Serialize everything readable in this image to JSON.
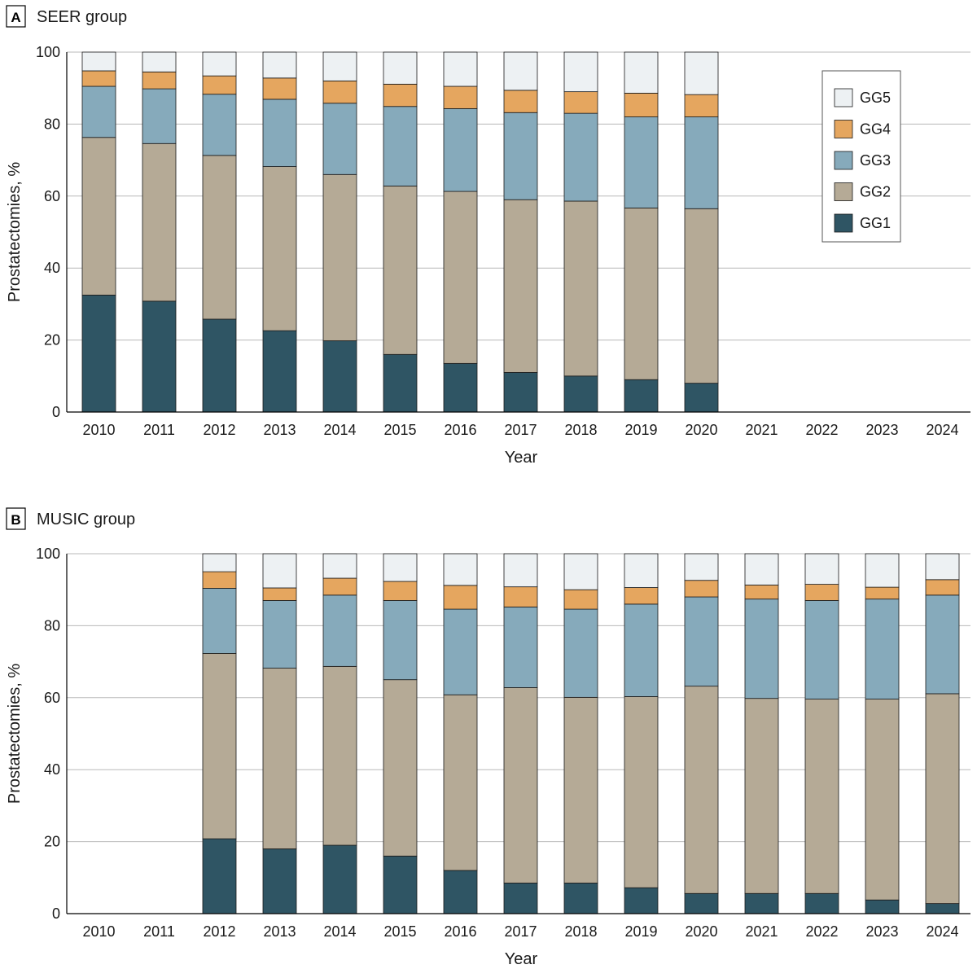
{
  "chart_data": [
    {
      "type": "bar",
      "stacked": true,
      "panel_letter": "A",
      "title": "SEER group",
      "xlabel": "Year",
      "ylabel": "Prostatectomies, %",
      "ylim": [
        0,
        100
      ],
      "yticks": [
        "0",
        "20",
        "40",
        "60",
        "80",
        "100"
      ],
      "grid": true,
      "legend_position": "top-right",
      "categories": [
        "2010",
        "2011",
        "2012",
        "2013",
        "2014",
        "2015",
        "2016",
        "2017",
        "2018",
        "2019",
        "2020",
        "2021",
        "2022",
        "2023",
        "2024"
      ],
      "series": [
        {
          "name": "GG1",
          "color": "#2f5564",
          "values": [
            32.5,
            30.8,
            25.8,
            22.6,
            19.8,
            16.0,
            13.5,
            11.0,
            10.0,
            9.0,
            8.0,
            null,
            null,
            null,
            null
          ]
        },
        {
          "name": "GG2",
          "color": "#b5aa96",
          "values": [
            43.8,
            43.8,
            45.5,
            45.6,
            46.2,
            46.8,
            47.8,
            48.0,
            48.6,
            47.7,
            48.5,
            null,
            null,
            null,
            null
          ]
        },
        {
          "name": "GG3",
          "color": "#86aabb",
          "values": [
            14.2,
            15.2,
            17.0,
            18.7,
            19.8,
            22.1,
            23.0,
            24.2,
            24.4,
            25.3,
            25.5,
            null,
            null,
            null,
            null
          ]
        },
        {
          "name": "GG4",
          "color": "#e5a65f",
          "values": [
            4.3,
            4.7,
            5.1,
            5.9,
            6.2,
            6.2,
            6.2,
            6.2,
            6.0,
            6.6,
            6.2,
            null,
            null,
            null,
            null
          ]
        },
        {
          "name": "GG5",
          "color": "#edf1f3",
          "values": [
            5.2,
            5.5,
            6.6,
            7.2,
            8.0,
            8.9,
            9.5,
            10.6,
            11.0,
            11.4,
            11.8,
            null,
            null,
            null,
            null
          ]
        }
      ]
    },
    {
      "type": "bar",
      "stacked": true,
      "panel_letter": "B",
      "title": "MUSIC group",
      "xlabel": "Year",
      "ylabel": "Prostatectomies, %",
      "ylim": [
        0,
        100
      ],
      "yticks": [
        "0",
        "20",
        "40",
        "60",
        "80",
        "100"
      ],
      "grid": true,
      "categories": [
        "2010",
        "2011",
        "2012",
        "2013",
        "2014",
        "2015",
        "2016",
        "2017",
        "2018",
        "2019",
        "2020",
        "2021",
        "2022",
        "2023",
        "2024"
      ],
      "series": [
        {
          "name": "GG1",
          "color": "#2f5564",
          "values": [
            null,
            null,
            20.8,
            18.0,
            19.0,
            16.0,
            12.0,
            8.5,
            8.5,
            7.2,
            5.6,
            5.6,
            5.6,
            3.8,
            2.8
          ]
        },
        {
          "name": "GG2",
          "color": "#b5aa96",
          "values": [
            null,
            null,
            51.5,
            50.2,
            49.7,
            49.0,
            48.8,
            54.3,
            51.6,
            53.1,
            57.6,
            54.2,
            54.0,
            55.8,
            58.3
          ]
        },
        {
          "name": "GG3",
          "color": "#86aabb",
          "values": [
            null,
            null,
            18.1,
            18.8,
            19.8,
            22.0,
            23.8,
            22.4,
            24.5,
            25.7,
            24.8,
            27.6,
            27.4,
            27.8,
            27.4
          ]
        },
        {
          "name": "GG4",
          "color": "#e5a65f",
          "values": [
            null,
            null,
            4.6,
            3.5,
            4.7,
            5.3,
            6.6,
            5.6,
            5.4,
            4.6,
            4.6,
            3.9,
            4.5,
            3.3,
            4.3
          ]
        },
        {
          "name": "GG5",
          "color": "#edf1f3",
          "values": [
            null,
            null,
            5.0,
            9.5,
            6.8,
            7.7,
            8.8,
            9.2,
            10.0,
            9.4,
            7.4,
            8.7,
            8.5,
            9.3,
            7.2
          ]
        }
      ]
    }
  ]
}
